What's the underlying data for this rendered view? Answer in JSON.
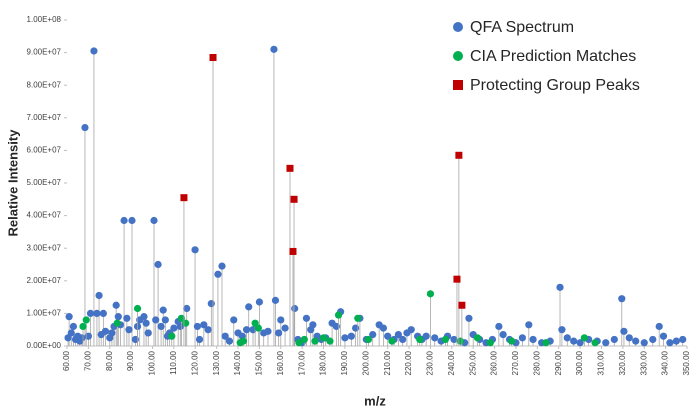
{
  "chart_data": {
    "type": "scatter",
    "xlabel": "m/z",
    "ylabel": "Relative Intensity",
    "xlim": [
      60,
      350
    ],
    "ylim": [
      0,
      100000000
    ],
    "xticks": [
      {
        "value": 60,
        "label": "60.00"
      },
      {
        "value": 70,
        "label": "70.00"
      },
      {
        "value": 80,
        "label": "80.00"
      },
      {
        "value": 90,
        "label": "90.00"
      },
      {
        "value": 100,
        "label": "100.00"
      },
      {
        "value": 110,
        "label": "110.00"
      },
      {
        "value": 120,
        "label": "120.00"
      },
      {
        "value": 130,
        "label": "130.00"
      },
      {
        "value": 140,
        "label": "140.00"
      },
      {
        "value": 150,
        "label": "150.00"
      },
      {
        "value": 160,
        "label": "160.00"
      },
      {
        "value": 170,
        "label": "170.00"
      },
      {
        "value": 180,
        "label": "180.00"
      },
      {
        "value": 190,
        "label": "190.00"
      },
      {
        "value": 200,
        "label": "200.00"
      },
      {
        "value": 210,
        "label": "210.00"
      },
      {
        "value": 220,
        "label": "220.00"
      },
      {
        "value": 230,
        "label": "230.00"
      },
      {
        "value": 240,
        "label": "240.00"
      },
      {
        "value": 250,
        "label": "250.00"
      },
      {
        "value": 260,
        "label": "260.00"
      },
      {
        "value": 270,
        "label": "270.00"
      },
      {
        "value": 280,
        "label": "280.00"
      },
      {
        "value": 290,
        "label": "290.00"
      },
      {
        "value": 300,
        "label": "300.00"
      },
      {
        "value": 310,
        "label": "310.00"
      },
      {
        "value": 320,
        "label": "320.00"
      },
      {
        "value": 330,
        "label": "330.00"
      },
      {
        "value": 340,
        "label": "340.00"
      },
      {
        "value": 350,
        "label": "350.00"
      }
    ],
    "yticks": [
      {
        "value": 0,
        "label": "0.00E+00"
      },
      {
        "value": 10000000,
        "label": "1.00E+07"
      },
      {
        "value": 20000000,
        "label": "2.00E+07"
      },
      {
        "value": 30000000,
        "label": "3.00E+07"
      },
      {
        "value": 40000000,
        "label": "4.00E+07"
      },
      {
        "value": 50000000,
        "label": "5.00E+07"
      },
      {
        "value": 60000000,
        "label": "6.00E+07"
      },
      {
        "value": 70000000,
        "label": "7.00E+07"
      },
      {
        "value": 80000000,
        "label": "8.00E+07"
      },
      {
        "value": 90000000,
        "label": "9.00E+07"
      },
      {
        "value": 100000000,
        "label": "1.00E+08"
      }
    ],
    "legend": "top-right",
    "stems": true,
    "series": [
      {
        "name": "QFA Spectrum",
        "color": "#4472c4",
        "marker": "circle",
        "x": [
          60.5,
          61,
          62,
          63,
          64,
          65,
          66,
          67,
          68.4,
          70,
          71,
          72.6,
          74,
          75,
          76,
          77,
          78,
          80,
          81,
          82,
          83,
          84,
          85,
          86.7,
          88,
          89,
          90.4,
          92,
          93,
          94,
          96,
          97,
          98,
          100.7,
          101.5,
          102.6,
          104,
          105,
          106,
          107,
          108,
          110,
          112,
          113,
          116,
          119.9,
          121,
          122,
          124,
          126,
          127.5,
          130.6,
          132.5,
          134,
          136,
          138,
          140,
          142,
          144,
          145,
          147,
          150,
          152,
          154,
          156.8,
          157.5,
          159,
          160,
          162,
          166.5,
          168,
          170,
          172,
          174,
          175,
          177,
          179,
          181,
          184,
          186,
          188,
          190,
          193,
          195,
          197,
          200,
          203,
          206,
          208,
          210,
          213,
          215,
          217,
          219,
          221,
          224,
          226,
          228,
          232,
          235,
          238,
          241,
          246,
          248,
          250,
          253,
          256,
          259,
          262,
          264,
          267,
          270,
          273,
          276,
          278,
          282,
          286,
          290.6,
          291.5,
          294,
          297,
          300,
          304,
          308,
          312,
          316,
          319.5,
          320.5,
          323,
          326,
          330,
          334,
          337,
          339,
          342,
          345,
          348
        ],
        "values": [
          2500000,
          9000000,
          4000000,
          6000000,
          2000000,
          3000000,
          1500000,
          2500000,
          67000000,
          3000000,
          10000000,
          90500000,
          10000000,
          15500000,
          3500000,
          10000000,
          4500000,
          2500000,
          4000000,
          6000000,
          12500000,
          9000000,
          6500000,
          38500000,
          8500000,
          5000000,
          38500000,
          2000000,
          6000000,
          8000000,
          9000000,
          7000000,
          4000000,
          38500000,
          8000000,
          25000000,
          6000000,
          11000000,
          8000000,
          3000000,
          4000000,
          5500000,
          7500000,
          6000000,
          11500000,
          29500000,
          6000000,
          2000000,
          6500000,
          5000000,
          13000000,
          22000000,
          24500000,
          3000000,
          1500000,
          8000000,
          4000000,
          3000000,
          5000000,
          12000000,
          5000000,
          13500000,
          4000000,
          4500000,
          91000000,
          14000000,
          4000000,
          8000000,
          5500000,
          11500000,
          2000000,
          1000000,
          8500000,
          5000000,
          6500000,
          3000000,
          2000000,
          2500000,
          7000000,
          6000000,
          10500000,
          2500000,
          3000000,
          5500000,
          8500000,
          2000000,
          3500000,
          6500000,
          5500000,
          3000000,
          2000000,
          3500000,
          2000000,
          4000000,
          5000000,
          3000000,
          2000000,
          3000000,
          2500000,
          1500000,
          3000000,
          2000000,
          1000000,
          8500000,
          3500000,
          2000000,
          1000000,
          2000000,
          6000000,
          3500000,
          2000000,
          1000000,
          2500000,
          6500000,
          2000000,
          1000000,
          1500000,
          18000000,
          5000000,
          2500000,
          1500000,
          1000000,
          2000000,
          1500000,
          1000000,
          2000000,
          14500000,
          4500000,
          2500000,
          1500000,
          1000000,
          2000000,
          6000000,
          3000000,
          1000000,
          1500000,
          2000000
        ]
      },
      {
        "name": "CIA Prediction Matches",
        "color": "#00b050",
        "marker": "circle",
        "x": [
          67.5,
          69,
          83.5,
          93,
          109,
          113.5,
          115.5,
          141,
          142.5,
          148,
          149.5,
          168.5,
          171,
          176,
          180,
          183,
          187,
          196,
          201,
          212,
          225,
          230,
          237,
          244,
          252,
          258,
          268,
          284,
          302,
          307
        ],
        "values": [
          6000000,
          8000000,
          7000000,
          11500000,
          3000000,
          8500000,
          7000000,
          1000000,
          1500000,
          7000000,
          5500000,
          1000000,
          2000000,
          1500000,
          2500000,
          1500000,
          9500000,
          8500000,
          2000000,
          1500000,
          2000000,
          16000000,
          2000000,
          1500000,
          2500000,
          1000000,
          1500000,
          1000000,
          2500000,
          1000000
        ]
      },
      {
        "name": "Protecting Group Peaks",
        "color": "#c00000",
        "marker": "square",
        "x": [
          114.7,
          128.3,
          164.3,
          165.7,
          166.2,
          242.4,
          243.3,
          244.7
        ],
        "values": [
          45500000,
          88500000,
          54500000,
          29000000,
          45000000,
          20500000,
          58500000,
          12500000
        ]
      }
    ]
  }
}
